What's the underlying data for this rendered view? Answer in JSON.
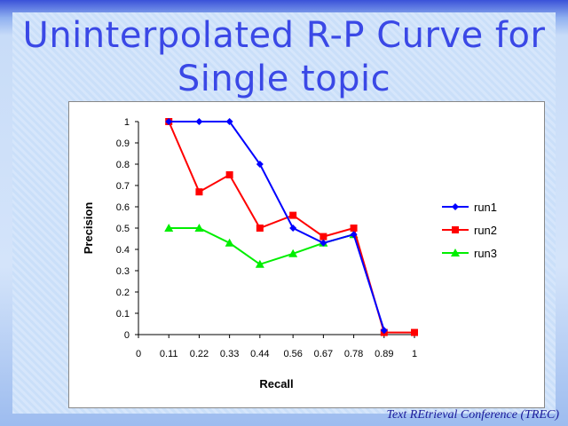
{
  "slide": {
    "title_line1": "Uninterpolated R-P Curve for",
    "title_line2": "Single topic",
    "footer": "Text REtrieval Conference (TREC)"
  },
  "chart_data": {
    "type": "line",
    "title": "",
    "xlabel": "Recall",
    "ylabel": "Precision",
    "x_tick_labels": [
      "0",
      "0.11",
      "0.22",
      "0.33",
      "0.44",
      "0.56",
      "0.67",
      "0.78",
      "0.89",
      "1"
    ],
    "x_ticks": [
      0,
      0.11,
      0.22,
      0.33,
      0.44,
      0.56,
      0.67,
      0.78,
      0.89,
      1
    ],
    "y_tick_labels": [
      "0",
      "0.1",
      "0.2",
      "0.3",
      "0.4",
      "0.5",
      "0.6",
      "0.7",
      "0.8",
      "0.9",
      "1"
    ],
    "xlim": [
      0,
      1
    ],
    "ylim": [
      0,
      1
    ],
    "grid": false,
    "legend_position": "right",
    "series": [
      {
        "name": "run1",
        "color": "#0000ff",
        "marker": "diamond",
        "x": [
          0.11,
          0.22,
          0.33,
          0.44,
          0.56,
          0.67,
          0.78,
          0.89
        ],
        "values": [
          1,
          1,
          1,
          0.8,
          0.5,
          0.43,
          0.47,
          0.02
        ]
      },
      {
        "name": "run2",
        "color": "#ff0000",
        "marker": "square",
        "x": [
          0.11,
          0.22,
          0.33,
          0.44,
          0.56,
          0.67,
          0.78,
          0.89,
          1
        ],
        "values": [
          1,
          0.67,
          0.75,
          0.5,
          0.56,
          0.46,
          0.5,
          0.01,
          0.01
        ]
      },
      {
        "name": "run3",
        "color": "#00ee00",
        "marker": "triangle",
        "x": [
          0.11,
          0.22,
          0.33,
          0.44,
          0.56,
          0.67,
          0.78
        ],
        "values": [
          0.5,
          0.5,
          0.43,
          0.33,
          0.38,
          0.43,
          0.47
        ]
      }
    ]
  }
}
